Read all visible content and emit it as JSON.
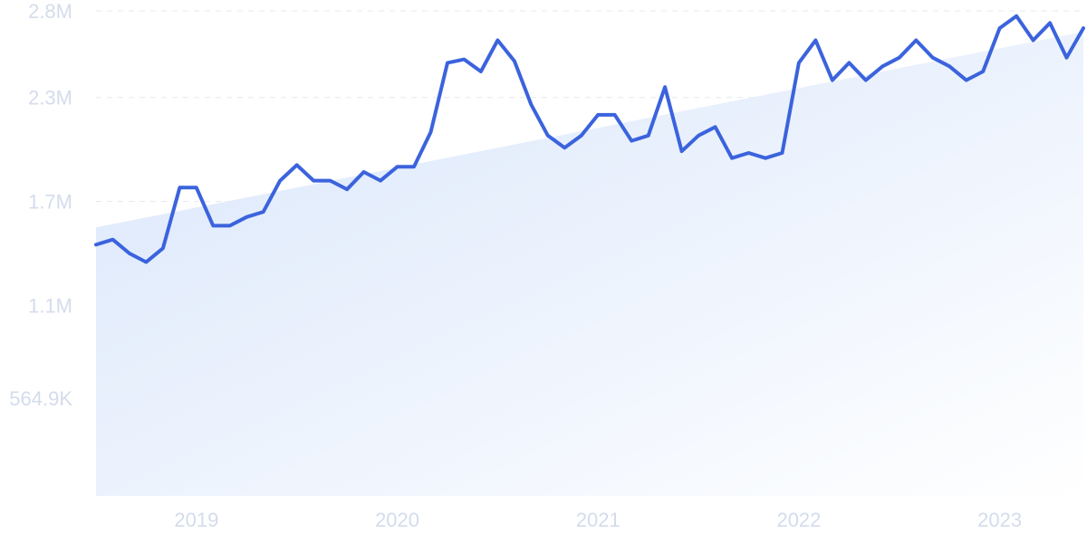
{
  "chart_data": {
    "type": "line",
    "title": "",
    "xlabel": "",
    "ylabel": "",
    "grid": "horizontal dashed",
    "legend": "none",
    "colors": {
      "line": "#3b63dd",
      "trend_fill_top": "#dbe8fb",
      "trend_fill_bottom": "#ffffff",
      "tick_text": "#d4dcec",
      "grid": "#e4e8f0"
    },
    "ylim": [
      0,
      2800000
    ],
    "y_ticks": [
      {
        "value": 564900,
        "label": "564.9K"
      },
      {
        "value": 1100000,
        "label": "1.1M"
      },
      {
        "value": 1700000,
        "label": "1.7M"
      },
      {
        "value": 2300000,
        "label": "2.3M"
      },
      {
        "value": 2800000,
        "label": "2.8M"
      }
    ],
    "x_ticks": [
      {
        "value": "2019-01",
        "label": "2019"
      },
      {
        "value": "2020-01",
        "label": "2020"
      },
      {
        "value": "2021-01",
        "label": "2021"
      },
      {
        "value": "2022-01",
        "label": "2022"
      },
      {
        "value": "2023-01",
        "label": "2023"
      }
    ],
    "x_range": [
      "2018-07",
      "2023-06"
    ],
    "trend": {
      "start": {
        "x": "2018-07",
        "y": 1550000
      },
      "end": {
        "x": "2023-06",
        "y": 2680000
      }
    },
    "series": [
      {
        "x": [
          "2018-07",
          "2018-08",
          "2018-09",
          "2018-10",
          "2018-11",
          "2018-12",
          "2019-01",
          "2019-02",
          "2019-03",
          "2019-04",
          "2019-05",
          "2019-06",
          "2019-07",
          "2019-08",
          "2019-09",
          "2019-10",
          "2019-11",
          "2019-12",
          "2020-01",
          "2020-02",
          "2020-03",
          "2020-04",
          "2020-05",
          "2020-06",
          "2020-07",
          "2020-08",
          "2020-09",
          "2020-10",
          "2020-11",
          "2020-12",
          "2021-01",
          "2021-02",
          "2021-03",
          "2021-04",
          "2021-05",
          "2021-06",
          "2021-07",
          "2021-08",
          "2021-09",
          "2021-10",
          "2021-11",
          "2021-12",
          "2022-01",
          "2022-02",
          "2022-03",
          "2022-04",
          "2022-05",
          "2022-06",
          "2022-07",
          "2022-08",
          "2022-09",
          "2022-10",
          "2022-11",
          "2022-12",
          "2023-01",
          "2023-02",
          "2023-03",
          "2023-04",
          "2023-05",
          "2023-06"
        ],
        "values": [
          1450000,
          1480000,
          1400000,
          1350000,
          1430000,
          1780000,
          1780000,
          1560000,
          1560000,
          1610000,
          1640000,
          1820000,
          1910000,
          1820000,
          1820000,
          1770000,
          1870000,
          1820000,
          1900000,
          1900000,
          2100000,
          2500000,
          2520000,
          2450000,
          2630000,
          2510000,
          2260000,
          2080000,
          2010000,
          2080000,
          2200000,
          2200000,
          2050000,
          2080000,
          2360000,
          1990000,
          2080000,
          2130000,
          1950000,
          1980000,
          1950000,
          1980000,
          2500000,
          2630000,
          2400000,
          2500000,
          2400000,
          2480000,
          2530000,
          2630000,
          2530000,
          2480000,
          2400000,
          2450000,
          2700000,
          2770000,
          2630000,
          2730000,
          2530000,
          2700000
        ]
      }
    ]
  }
}
